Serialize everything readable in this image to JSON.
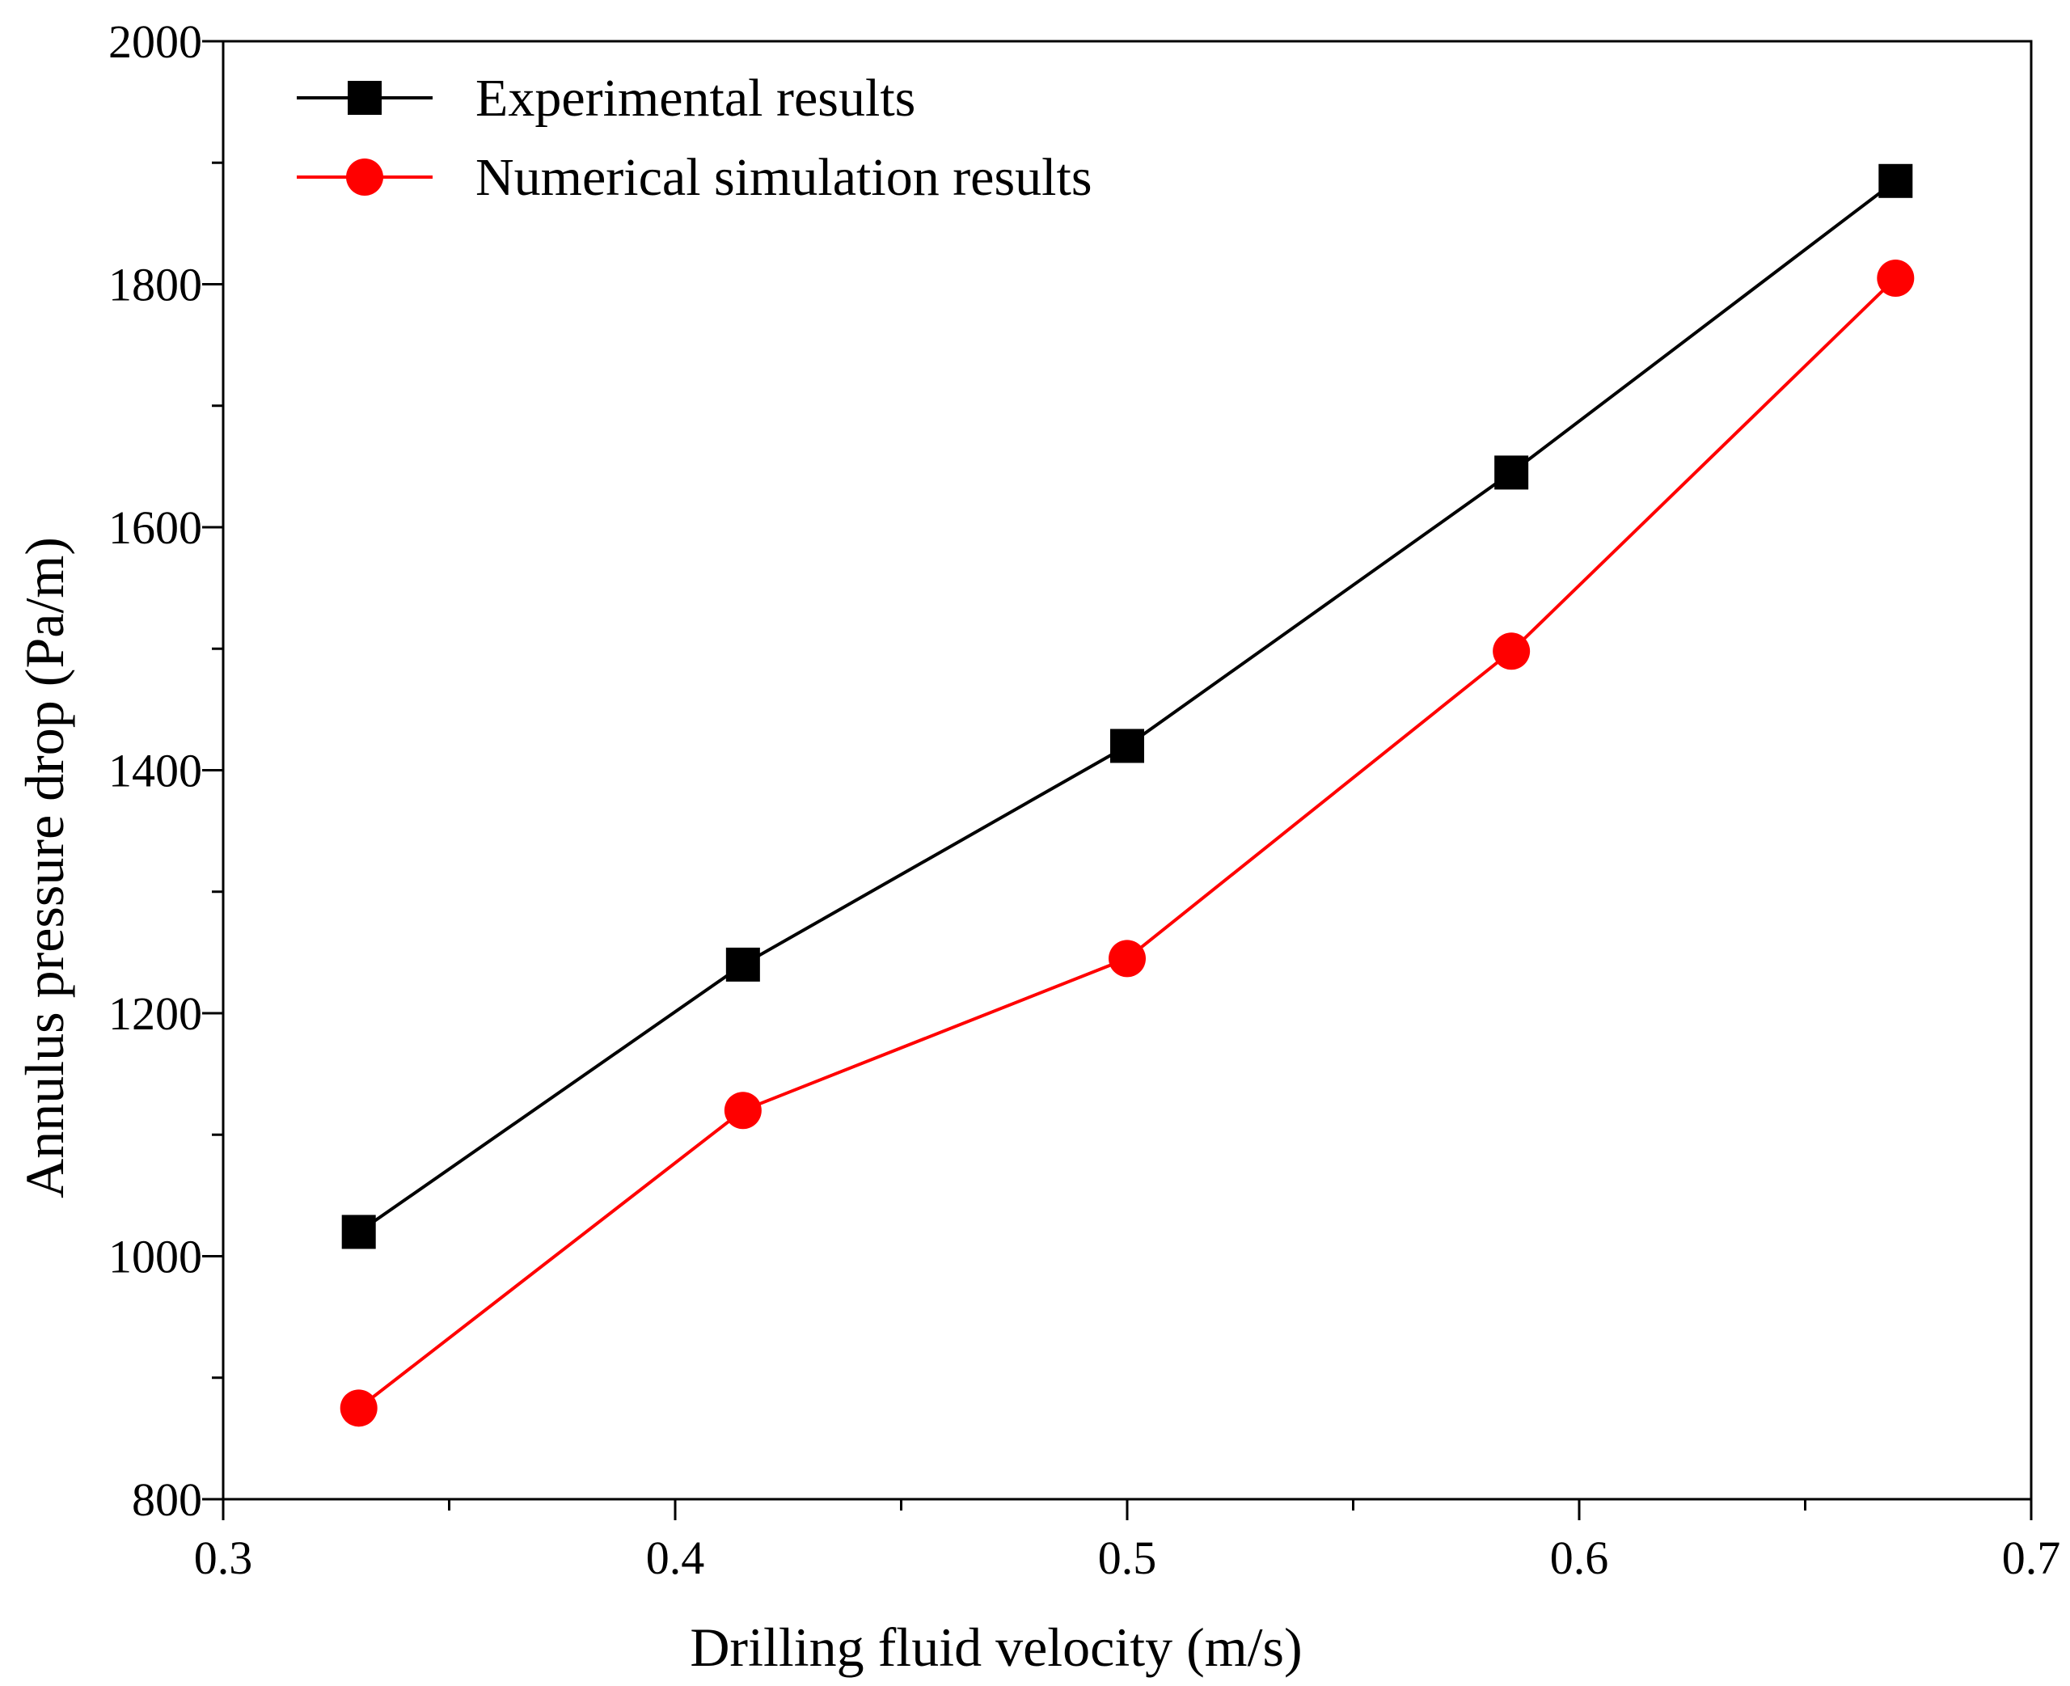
{
  "chart_data": {
    "type": "line",
    "title": "",
    "xlabel": "Drilling fluid velocity (m/s)",
    "ylabel": "Annulus pressure drop (Pa/m)",
    "xlim": [
      0.3,
      0.7
    ],
    "ylim": [
      800,
      2000
    ],
    "xticks": [
      0.3,
      0.4,
      0.5,
      0.6,
      0.7
    ],
    "xtick_labels": [
      "0.3",
      "0.4",
      "0.5",
      "0.6",
      "0.7"
    ],
    "yticks": [
      800,
      1000,
      1200,
      1400,
      1600,
      1800,
      2000
    ],
    "ytick_labels": [
      "800",
      "1000",
      "1200",
      "1400",
      "1600",
      "1800",
      "2000"
    ],
    "grid": false,
    "legend_position": "top-left",
    "series": [
      {
        "name": "Experimental results",
        "color": "#000000",
        "marker": "square",
        "x": [
          0.33,
          0.415,
          0.5,
          0.585,
          0.67
        ],
        "y": [
          1020,
          1240,
          1420,
          1645,
          1885
        ]
      },
      {
        "name": "Numerical simulation results",
        "color": "#ff0000",
        "marker": "circle",
        "x": [
          0.33,
          0.415,
          0.5,
          0.585,
          0.67
        ],
        "y": [
          875,
          1120,
          1245,
          1498,
          1805
        ]
      }
    ]
  }
}
